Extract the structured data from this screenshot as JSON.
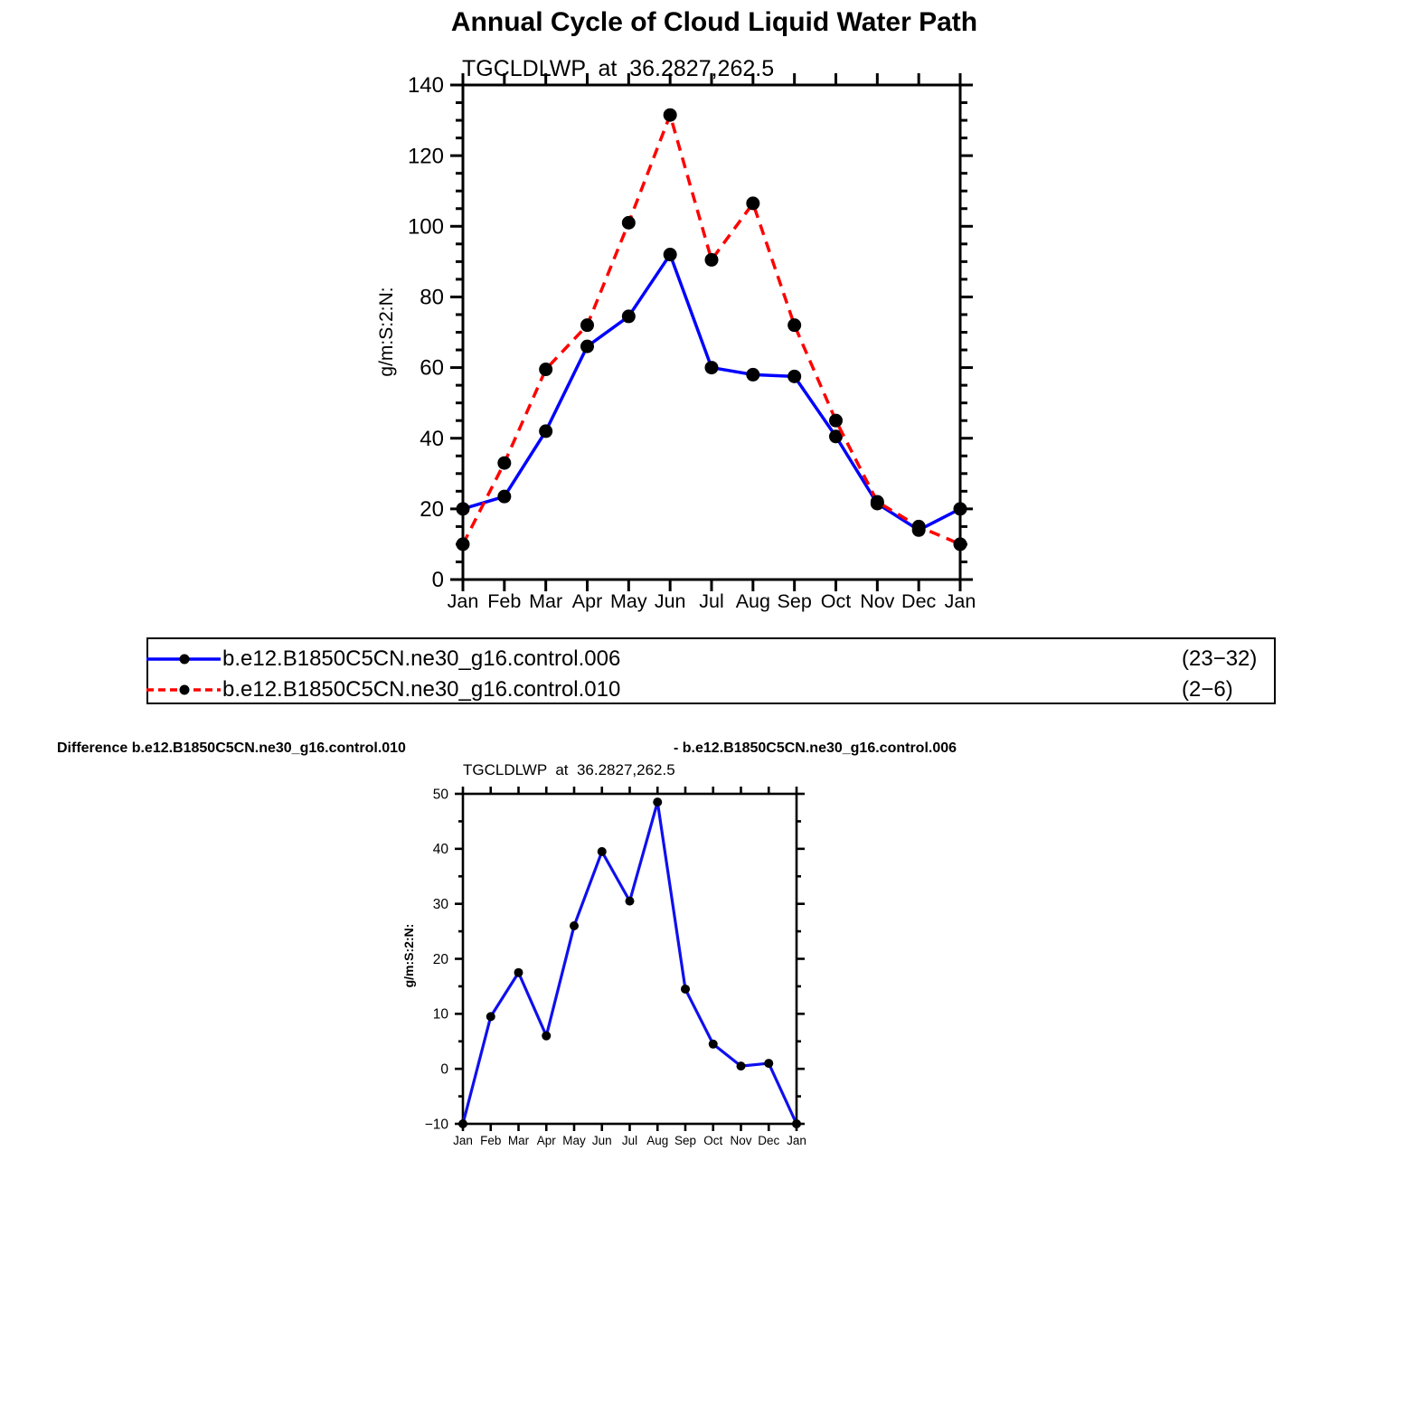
{
  "page": {
    "background": "#ffffff"
  },
  "chart_data": [
    {
      "type": "line",
      "title": "Annual Cycle of Cloud Liquid Water Path",
      "subtitle": "TGCLDLWP  at  36.2827,262.5",
      "ylabel": "g/m:S:2:N:",
      "xlabel": "",
      "categories": [
        "Jan",
        "Feb",
        "Mar",
        "Apr",
        "May",
        "Jun",
        "Jul",
        "Aug",
        "Sep",
        "Oct",
        "Nov",
        "Dec",
        "Jan"
      ],
      "ylim": [
        0,
        140
      ],
      "ytick_interval": 20,
      "yminor_interval": 5,
      "grid": false,
      "legend_position": "below",
      "series": [
        {
          "name": "b.e12.B1850C5CN.ne30_g16.control.006",
          "years": "(23−32)",
          "color": "#0000ff",
          "style": "solid",
          "marker_color": "#000000",
          "values": [
            20,
            23.5,
            42,
            66,
            74.5,
            92,
            60,
            58,
            57.5,
            40.5,
            21.5,
            14,
            20
          ]
        },
        {
          "name": "b.e12.B1850C5CN.ne30_g16.control.010",
          "years": "(2−6)",
          "color": "#ff0000",
          "style": "dashed",
          "marker_color": "#000000",
          "values": [
            10,
            33,
            59.5,
            72,
            101,
            131.5,
            90.5,
            106.5,
            72,
            45,
            22,
            15,
            10
          ]
        }
      ]
    },
    {
      "type": "line",
      "title_left": "Difference b.e12.B1850C5CN.ne30_g16.control.010",
      "title_right": "- b.e12.B1850C5CN.ne30_g16.control.006",
      "subtitle": "TGCLDLWP  at  36.2827,262.5",
      "ylabel": "g/m:S:2:N:",
      "xlabel": "",
      "categories": [
        "Jan",
        "Feb",
        "Mar",
        "Apr",
        "May",
        "Jun",
        "Jul",
        "Aug",
        "Sep",
        "Oct",
        "Nov",
        "Dec",
        "Jan"
      ],
      "ylim": [
        -10,
        50
      ],
      "ytick_interval": 10,
      "yminor_interval": 5,
      "grid": false,
      "series": [
        {
          "name": "difference (control.010 − control.006)",
          "color": "#0f0fee",
          "style": "solid",
          "marker_color": "#000000",
          "values": [
            -10,
            9.5,
            17.5,
            6,
            26,
            39.5,
            30.5,
            48.5,
            14.5,
            4.5,
            0.5,
            1,
            -10
          ]
        }
      ]
    }
  ]
}
